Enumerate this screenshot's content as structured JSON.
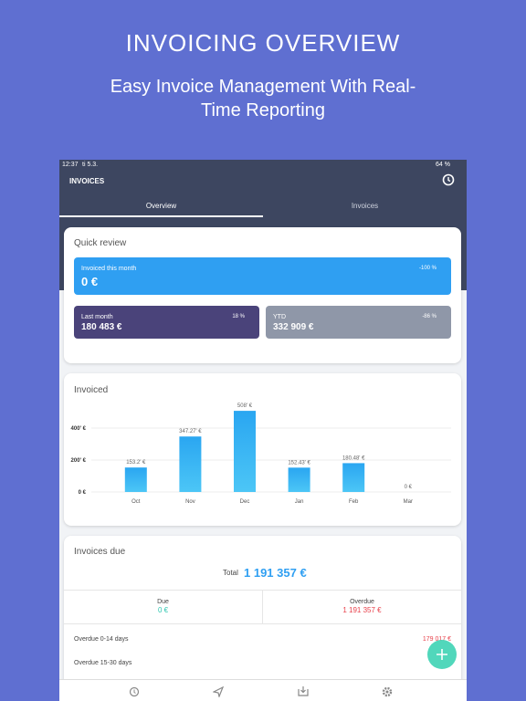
{
  "header": {
    "title": "INVOICING OVERVIEW",
    "subtitle": "Easy Invoice Management With Real-Time Reporting"
  },
  "status_bar": {
    "time": "12:37",
    "date": "ti 5.3.",
    "battery": "64 %"
  },
  "app_bar": {
    "title": "INVOICES",
    "tabs": [
      "Overview",
      "Invoices"
    ]
  },
  "quick_review": {
    "title": "Quick review",
    "this_month": {
      "label": "Invoiced this month",
      "value": "0 €",
      "change": "-100 %"
    },
    "last_month": {
      "label": "Last month",
      "value": "180 483 €",
      "change": "18 %"
    },
    "ytd": {
      "label": "YTD",
      "value": "332 909 €",
      "change": "-86 %"
    }
  },
  "chart_data": {
    "type": "bar",
    "title": "Invoiced",
    "categories": [
      "Oct",
      "Nov",
      "Dec",
      "Jan",
      "Feb",
      "Mar"
    ],
    "values": [
      153.2,
      347.27,
      508,
      152.43,
      180.48,
      0
    ],
    "value_labels": [
      "153.2' €",
      "347.27' €",
      "508' €",
      "152.43' €",
      "180.48' €",
      "0 €"
    ],
    "color": "#3ab0f0",
    "ylim": [
      0,
      520
    ],
    "yticks": [
      {
        "value": 0,
        "label": "0 €"
      },
      {
        "value": 200,
        "label": "200' €"
      },
      {
        "value": 400,
        "label": "400' €"
      }
    ],
    "grid": true
  },
  "invoices_due": {
    "title": "Invoices due",
    "total_label": "Total",
    "total": "1 191 357 €",
    "due_label": "Due",
    "due": "0 €",
    "overdue_label": "Overdue",
    "overdue": "1 191 357 €",
    "rows": [
      {
        "label": "Overdue 0-14 days",
        "value": "179 017 €"
      },
      {
        "label": "Overdue 15-30 days"
      }
    ]
  }
}
